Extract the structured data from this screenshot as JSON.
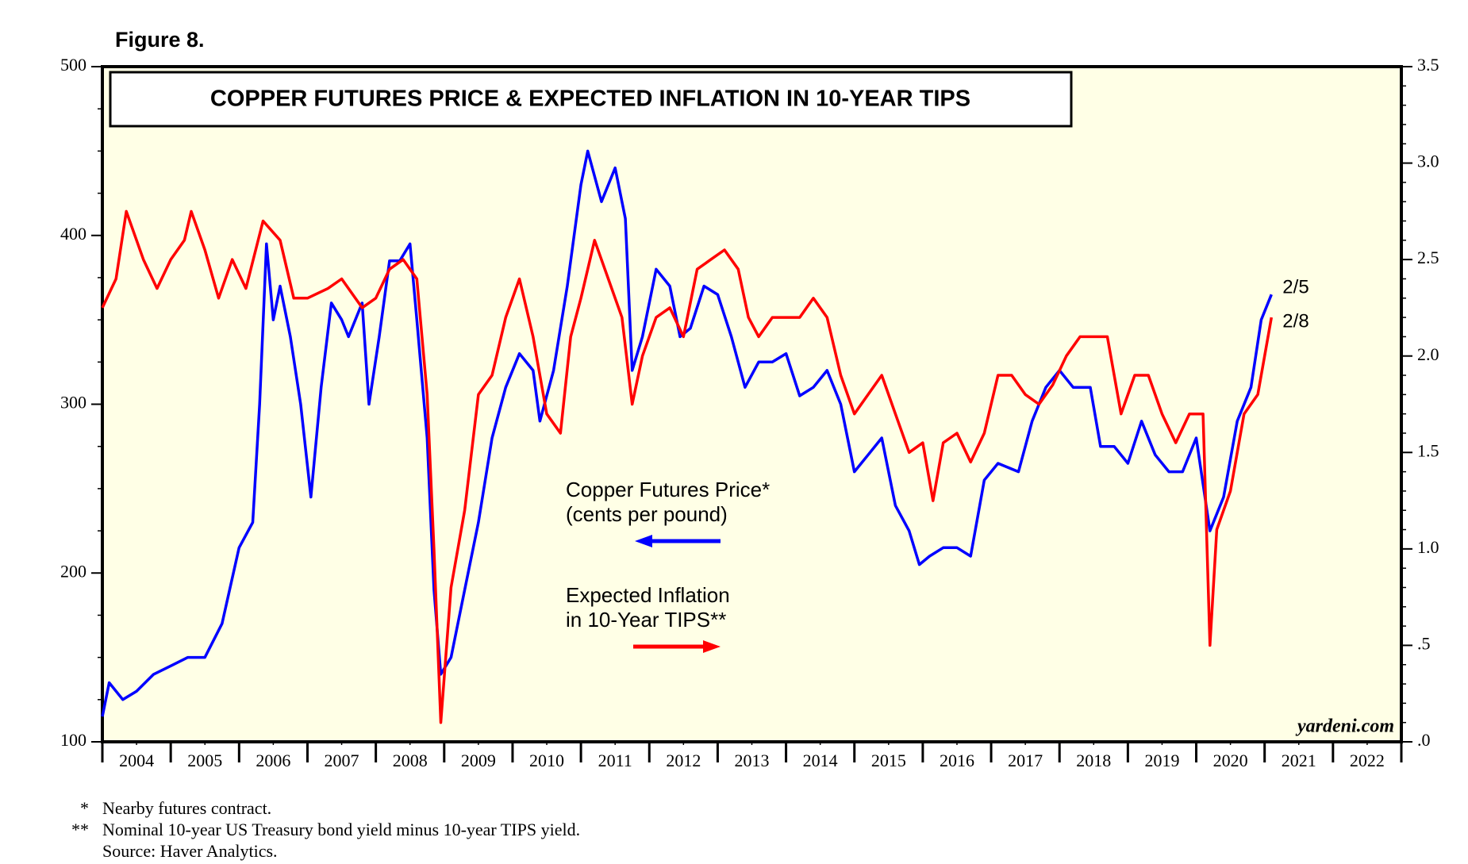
{
  "figure_label": "Figure 8.",
  "chart_data": {
    "type": "line",
    "title": "COPPER FUTURES PRICE & EXPECTED INFLATION IN 10-YEAR TIPS",
    "xlim": [
      2004,
      2023
    ],
    "xticks": [
      {
        "value": 2004.5,
        "label": "2004"
      },
      {
        "value": 2005.5,
        "label": "2005"
      },
      {
        "value": 2006.5,
        "label": "2006"
      },
      {
        "value": 2007.5,
        "label": "2007"
      },
      {
        "value": 2008.5,
        "label": "2008"
      },
      {
        "value": 2009.5,
        "label": "2009"
      },
      {
        "value": 2010.5,
        "label": "2010"
      },
      {
        "value": 2011.5,
        "label": "2011"
      },
      {
        "value": 2012.5,
        "label": "2012"
      },
      {
        "value": 2013.5,
        "label": "2013"
      },
      {
        "value": 2014.5,
        "label": "2014"
      },
      {
        "value": 2015.5,
        "label": "2015"
      },
      {
        "value": 2016.5,
        "label": "2016"
      },
      {
        "value": 2017.5,
        "label": "2017"
      },
      {
        "value": 2018.5,
        "label": "2018"
      },
      {
        "value": 2019.5,
        "label": "2019"
      },
      {
        "value": 2020.5,
        "label": "2020"
      },
      {
        "value": 2021.5,
        "label": "2021"
      },
      {
        "value": 2022.5,
        "label": "2022"
      }
    ],
    "ylim": [
      100,
      500
    ],
    "yticks": [
      100,
      200,
      300,
      400,
      500
    ],
    "y2lim": [
      0,
      3.5
    ],
    "y2ticks": [
      {
        "value": 0,
        "label": ".0"
      },
      {
        "value": 0.5,
        "label": ".5"
      },
      {
        "value": 1,
        "label": "1.0"
      },
      {
        "value": 1.5,
        "label": "1.5"
      },
      {
        "value": 2,
        "label": "2.0"
      },
      {
        "value": 2.5,
        "label": "2.5"
      },
      {
        "value": 3,
        "label": "3.0"
      },
      {
        "value": 3.5,
        "label": "3.5"
      }
    ],
    "background": "#ffffe6",
    "series": [
      {
        "label_lines": [
          "Copper Futures Price*",
          "(cents per pound)"
        ],
        "end_label": "2/5",
        "color": "#0000ff",
        "x": [
          2004.0,
          2004.1,
          2004.3,
          2004.5,
          2004.75,
          2005.0,
          2005.25,
          2005.5,
          2005.75,
          2006.0,
          2006.2,
          2006.3,
          2006.4,
          2006.5,
          2006.6,
          2006.75,
          2006.9,
          2007.05,
          2007.2,
          2007.35,
          2007.5,
          2007.6,
          2007.8,
          2007.9,
          2008.05,
          2008.2,
          2008.35,
          2008.5,
          2008.6,
          2008.75,
          2008.85,
          2008.95,
          2009.1,
          2009.3,
          2009.5,
          2009.7,
          2009.9,
          2010.1,
          2010.3,
          2010.4,
          2010.6,
          2010.8,
          2011.0,
          2011.1,
          2011.3,
          2011.5,
          2011.65,
          2011.75,
          2011.9,
          2012.1,
          2012.3,
          2012.45,
          2012.6,
          2012.8,
          2013.0,
          2013.2,
          2013.4,
          2013.6,
          2013.8,
          2014.0,
          2014.2,
          2014.4,
          2014.6,
          2014.8,
          2015.0,
          2015.2,
          2015.4,
          2015.6,
          2015.8,
          2015.95,
          2016.1,
          2016.3,
          2016.5,
          2016.7,
          2016.9,
          2017.1,
          2017.4,
          2017.6,
          2017.8,
          2018.0,
          2018.2,
          2018.45,
          2018.6,
          2018.8,
          2019.0,
          2019.2,
          2019.4,
          2019.6,
          2019.8,
          2020.0,
          2020.2,
          2020.4,
          2020.6,
          2020.8,
          2020.95,
          2021.1
        ],
        "values": [
          115,
          135,
          125,
          130,
          140,
          145,
          150,
          150,
          170,
          215,
          230,
          300,
          395,
          350,
          370,
          340,
          300,
          245,
          310,
          360,
          350,
          340,
          360,
          300,
          340,
          385,
          385,
          395,
          350,
          280,
          190,
          140,
          150,
          190,
          230,
          280,
          310,
          330,
          320,
          290,
          320,
          370,
          430,
          450,
          420,
          440,
          410,
          320,
          340,
          380,
          370,
          340,
          345,
          370,
          365,
          340,
          310,
          325,
          325,
          330,
          305,
          310,
          320,
          300,
          260,
          270,
          280,
          240,
          225,
          205,
          210,
          215,
          215,
          210,
          255,
          265,
          260,
          290,
          310,
          320,
          310,
          310,
          275,
          275,
          265,
          290,
          270,
          260,
          260,
          280,
          225,
          245,
          290,
          310,
          350,
          365
        ]
      },
      {
        "label_lines": [
          "Expected Inflation",
          "in 10-Year TIPS**"
        ],
        "end_label": "2/8",
        "color": "#ff0000",
        "axis": "y2",
        "x": [
          2004.0,
          2004.2,
          2004.35,
          2004.6,
          2004.8,
          2005.0,
          2005.2,
          2005.3,
          2005.5,
          2005.7,
          2005.9,
          2006.1,
          2006.35,
          2006.6,
          2006.8,
          2007.0,
          2007.3,
          2007.5,
          2007.8,
          2008.0,
          2008.2,
          2008.4,
          2008.6,
          2008.75,
          2008.85,
          2008.95,
          2009.1,
          2009.3,
          2009.5,
          2009.7,
          2009.9,
          2010.1,
          2010.3,
          2010.5,
          2010.7,
          2010.85,
          2011.0,
          2011.2,
          2011.4,
          2011.6,
          2011.75,
          2011.9,
          2012.1,
          2012.3,
          2012.5,
          2012.7,
          2012.9,
          2013.1,
          2013.3,
          2013.45,
          2013.6,
          2013.8,
          2014.0,
          2014.2,
          2014.4,
          2014.6,
          2014.8,
          2015.0,
          2015.2,
          2015.4,
          2015.6,
          2015.8,
          2016.0,
          2016.15,
          2016.3,
          2016.5,
          2016.7,
          2016.9,
          2017.1,
          2017.3,
          2017.5,
          2017.7,
          2017.9,
          2018.1,
          2018.3,
          2018.5,
          2018.7,
          2018.9,
          2019.1,
          2019.3,
          2019.5,
          2019.7,
          2019.9,
          2020.1,
          2020.2,
          2020.3,
          2020.5,
          2020.7,
          2020.9,
          2021.1
        ],
        "values": [
          2.25,
          2.4,
          2.75,
          2.5,
          2.35,
          2.5,
          2.6,
          2.75,
          2.55,
          2.3,
          2.5,
          2.35,
          2.7,
          2.6,
          2.3,
          2.3,
          2.35,
          2.4,
          2.25,
          2.3,
          2.45,
          2.5,
          2.4,
          1.8,
          1.0,
          0.1,
          0.8,
          1.2,
          1.8,
          1.9,
          2.2,
          2.4,
          2.1,
          1.7,
          1.6,
          2.1,
          2.3,
          2.6,
          2.4,
          2.2,
          1.75,
          2.0,
          2.2,
          2.25,
          2.1,
          2.45,
          2.5,
          2.55,
          2.45,
          2.2,
          2.1,
          2.2,
          2.2,
          2.2,
          2.3,
          2.2,
          1.9,
          1.7,
          1.8,
          1.9,
          1.7,
          1.5,
          1.55,
          1.25,
          1.55,
          1.6,
          1.45,
          1.6,
          1.9,
          1.9,
          1.8,
          1.75,
          1.85,
          2.0,
          2.1,
          2.1,
          2.1,
          1.7,
          1.9,
          1.9,
          1.7,
          1.55,
          1.7,
          1.7,
          0.5,
          1.1,
          1.3,
          1.7,
          1.8,
          2.2
        ]
      }
    ],
    "watermark": "yardeni.com"
  },
  "footnotes": [
    {
      "marker": "*",
      "text": "Nearby futures contract."
    },
    {
      "marker": "**",
      "text": "Nominal 10-year US Treasury bond yield minus 10-year TIPS yield."
    },
    {
      "marker": "",
      "text": "Source: Haver Analytics."
    }
  ]
}
